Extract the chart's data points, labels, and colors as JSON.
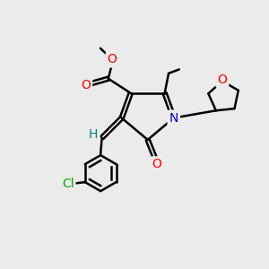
{
  "bg_color": "#ebebeb",
  "bond_color": "#000000",
  "bond_width": 1.8,
  "atom_colors": {
    "O": "#ff0000",
    "N": "#0000cc",
    "Cl": "#00aa00",
    "H": "#008080",
    "C": "#000000"
  }
}
